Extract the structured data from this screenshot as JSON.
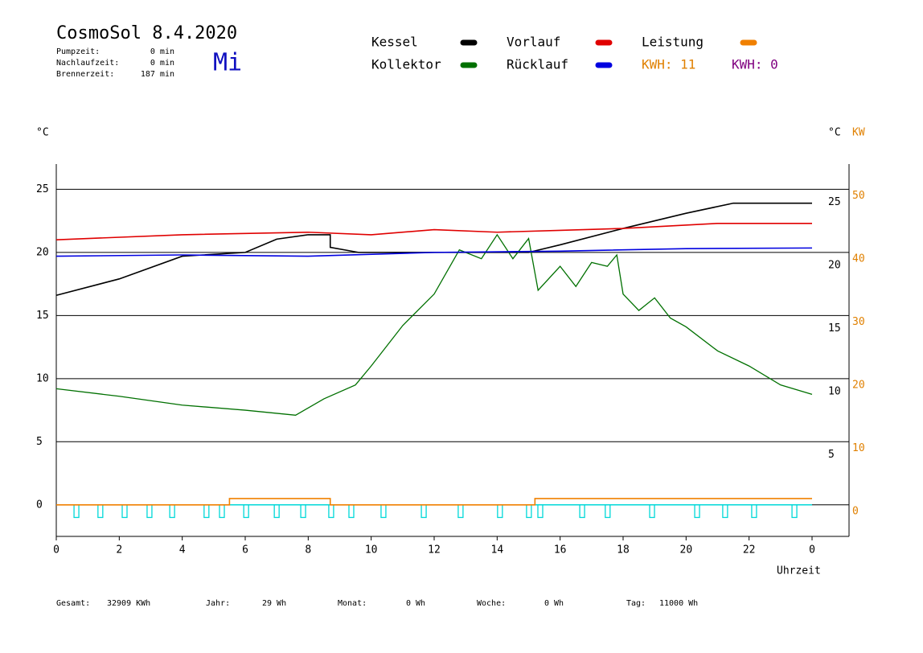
{
  "header": {
    "title": "CosmoSol 8.4.2020",
    "weekday": "Mi",
    "stats": [
      [
        "Pumpzeit:",
        "0 min"
      ],
      [
        "Nachlaufzeit:",
        "0 min"
      ],
      [
        "Brennerzeit:",
        "187 min"
      ]
    ],
    "kwh_orange": "KWH: 11",
    "kwh_purple": "KWH: 0"
  },
  "footer": [
    [
      "Gesamt:",
      "32909 KWh"
    ],
    [
      "Jahr:",
      "29 Wh"
    ],
    [
      "Monat:",
      "0 Wh"
    ],
    [
      "Woche:",
      "0 Wh"
    ],
    [
      "Tag:",
      "11000 Wh"
    ]
  ],
  "chart_data": {
    "type": "line",
    "y_label": "°C",
    "y_right_label": "°C",
    "y2_label": "KW",
    "x_label": "Uhrzeit",
    "xlim": [
      0,
      24
    ],
    "xticks": [
      0,
      2,
      4,
      6,
      8,
      10,
      12,
      14,
      16,
      18,
      20,
      22,
      {
        "value": 24,
        "label": "0"
      }
    ],
    "ylim": [
      -2.5,
      27
    ],
    "yticks": [
      0,
      5,
      10,
      15,
      20,
      25
    ],
    "yticks_right": [
      5,
      10,
      15,
      20,
      25
    ],
    "y2lim": [
      -5,
      54
    ],
    "y2ticks": [
      0,
      10,
      20,
      30,
      40,
      50
    ],
    "y2_color": "#e08000",
    "grid": true,
    "series": [
      {
        "name": "Kessel",
        "color": "#000000",
        "x": [
          0,
          2,
          4,
          6,
          7,
          8,
          8.7,
          8.7,
          9.6,
          15,
          16,
          18,
          20,
          21.5,
          24
        ],
        "values": [
          16.6,
          17.9,
          19.7,
          20.0,
          21.05,
          21.4,
          21.4,
          20.4,
          20.0,
          20.0,
          20.6,
          21.9,
          23.1,
          23.9,
          23.9
        ]
      },
      {
        "name": "Kollektor",
        "color": "#007000",
        "x": [
          0,
          2,
          4,
          6,
          7.6,
          8.5,
          9.5,
          10,
          11,
          12,
          12.8,
          13.5,
          14,
          14.5,
          15,
          15.3,
          16,
          16.5,
          17,
          17.5,
          17.8,
          18,
          18.5,
          19,
          19.5,
          20,
          21,
          22,
          23,
          24
        ],
        "values": [
          9.2,
          8.6,
          7.9,
          7.5,
          7.1,
          8.4,
          9.5,
          11.0,
          14.2,
          16.7,
          20.2,
          19.5,
          21.4,
          19.5,
          21.1,
          17.0,
          18.9,
          17.3,
          19.2,
          18.9,
          19.8,
          16.7,
          15.4,
          16.4,
          14.8,
          14.1,
          12.2,
          11.0,
          9.5,
          8.75
        ]
      },
      {
        "name": "Vorlauf",
        "color": "#e00000",
        "x": [
          0,
          4,
          8,
          10,
          12,
          14,
          16,
          18,
          21,
          24
        ],
        "values": [
          21.0,
          21.4,
          21.6,
          21.4,
          21.8,
          21.6,
          21.75,
          21.9,
          22.3,
          22.3
        ]
      },
      {
        "name": "Rücklauf",
        "color": "#0000e0",
        "x": [
          0,
          4,
          8,
          12,
          16,
          20,
          24
        ],
        "values": [
          19.7,
          19.8,
          19.7,
          20.0,
          20.1,
          20.3,
          20.35
        ]
      },
      {
        "name": "Leistung",
        "color": "#f08000",
        "axis": "y2",
        "x": [
          0,
          5.5,
          5.5,
          8.7,
          8.7,
          15.2,
          15.2,
          24
        ],
        "values": [
          0,
          0,
          1,
          1,
          0,
          0,
          1,
          1
        ]
      }
    ],
    "pulses": {
      "color": "#00d8d8",
      "x": [
        0.64,
        1.4,
        2.17,
        2.96,
        3.68,
        4.77,
        5.26,
        6.03,
        7.0,
        7.84,
        8.73,
        9.37,
        10.39,
        11.67,
        12.84,
        14.09,
        15.01,
        15.37,
        16.7,
        17.51,
        18.92,
        20.35,
        21.24,
        22.16,
        23.44
      ],
      "values": [
        -1,
        -1,
        -1,
        -1,
        -1,
        -1,
        -1,
        -1,
        -1,
        -1,
        -1,
        -1,
        -1,
        -1,
        -1,
        -1,
        -1,
        -1,
        -1,
        -1,
        -1,
        -1,
        -1,
        -1,
        -1
      ]
    }
  }
}
